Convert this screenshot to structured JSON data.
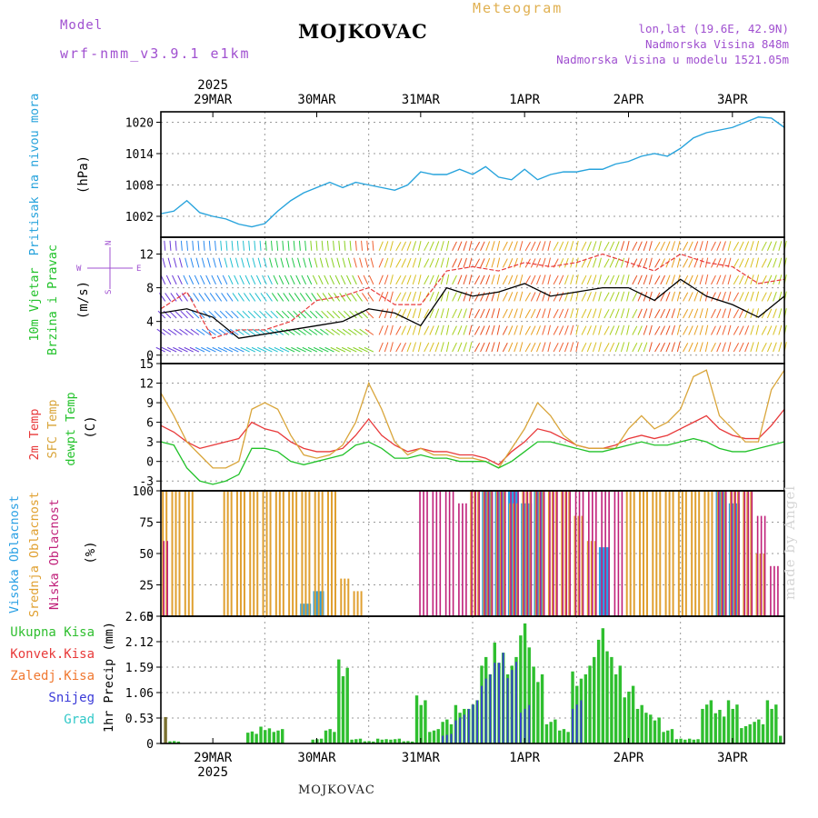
{
  "header": {
    "meteogram_label": "Meteogram",
    "model_label": "Model",
    "model_name": "wrf-nmm_v3.9.1 e1km",
    "station": "MOJKOVAC",
    "lonlat": "lon,lat (19.6E, 42.9N)",
    "elevation": "Nadmorska Visina 848m",
    "model_elevation": "Nadmorska Visina u modelu 1521.05m",
    "footer_station": "MOJKOVAC",
    "watermark": "made by Angel"
  },
  "colors": {
    "pressure": "#27a3dc",
    "temp2m": "#e8393a",
    "sfc_temp": "#d9a53a",
    "dewpoint": "#22c22a",
    "high_cloud": "#2aa0e4",
    "mid_cloud": "#e0a030",
    "low_cloud": "#c0207a",
    "total_precip": "#2fbf2f",
    "convective": "#e83a3a",
    "freezing": "#f07830",
    "snow": "#3a3ad8",
    "hail": "#30c8c8",
    "purple_header": "#a050d0",
    "meteogram_label": "#e0b050"
  },
  "axis": {
    "top_year": "2025",
    "bottom_year": "2025",
    "days_top": [
      "29MAR",
      "30MAR",
      "31MAR",
      "1APR",
      "2APR",
      "3APR"
    ],
    "days_bottom": [
      "29MAR",
      "30MAR",
      "31MAR",
      "1APR",
      "2APR",
      "3APR"
    ]
  },
  "chart_data": [
    {
      "type": "line",
      "title": "Pritisak na nivou mora",
      "ylabel": "(hPa)",
      "yticks": [
        "1002",
        "1008",
        "1014",
        "1020"
      ],
      "ylim": [
        998,
        1022
      ],
      "x_hours": [
        0,
        3,
        6,
        9,
        12,
        15,
        18,
        21,
        24,
        27,
        30,
        33,
        36,
        39,
        42,
        45,
        48,
        51,
        54,
        57,
        60,
        63,
        66,
        69,
        72,
        75,
        78,
        81,
        84,
        87,
        90,
        93,
        96,
        99,
        102,
        105,
        108,
        111,
        114,
        117,
        120,
        123,
        126,
        129,
        132,
        135,
        138,
        141,
        144
      ],
      "values": [
        1002.5,
        1003,
        1005,
        1002.7,
        1002,
        1001.5,
        1000.5,
        1000,
        1000.6,
        1003,
        1005,
        1006.5,
        1007.5,
        1008.5,
        1007.5,
        1008.5,
        1008,
        1007.5,
        1007,
        1008,
        1010.5,
        1010,
        1010,
        1011,
        1010,
        1011.5,
        1009.5,
        1009,
        1011,
        1009,
        1010,
        1010.5,
        1010.5,
        1011,
        1011,
        1012,
        1012.5,
        1013.5,
        1014,
        1013.5,
        1015,
        1017,
        1018,
        1018.5,
        1019,
        1020,
        1021,
        1020.8,
        1019
      ]
    },
    {
      "type": "line",
      "title": "10m Vjetar Brzina i Pravac",
      "ylabel": "(m/s)",
      "compass": {
        "n": "N",
        "e": "E",
        "s": "S",
        "w": "W"
      },
      "yticks": [
        "0",
        "4",
        "8",
        "12"
      ],
      "ylim": [
        -1,
        14
      ],
      "x_hours": [
        0,
        6,
        12,
        18,
        24,
        30,
        36,
        42,
        48,
        54,
        60,
        66,
        72,
        78,
        84,
        90,
        96,
        102,
        108,
        114,
        120,
        126,
        132,
        138,
        144
      ],
      "series": [
        {
          "values": [
            5,
            5.5,
            4.5,
            2,
            2.5,
            3,
            3.5,
            4,
            5.5,
            5,
            3.5,
            8,
            7,
            7.5,
            8.5,
            7,
            7.5,
            8,
            8,
            6.5,
            9,
            7,
            6,
            4.5,
            7
          ]
        },
        {
          "values": [
            5.5,
            7.5,
            2,
            3,
            3,
            4,
            6.5,
            7,
            8,
            6,
            6,
            10,
            10.5,
            10,
            11,
            10.5,
            11,
            12,
            11,
            10,
            12,
            11,
            10.5,
            8.5,
            9
          ]
        }
      ]
    },
    {
      "type": "line",
      "title": "2m Temp / SFC Temp / dewpt Temp",
      "ylabel": "(C)",
      "yticks": [
        "-3",
        "0",
        "3",
        "6",
        "9",
        "12",
        "15"
      ],
      "ylim": [
        -4.5,
        15
      ],
      "x_hours": [
        0,
        3,
        6,
        9,
        12,
        15,
        18,
        21,
        24,
        27,
        30,
        33,
        36,
        39,
        42,
        45,
        48,
        51,
        54,
        57,
        60,
        63,
        66,
        69,
        72,
        75,
        78,
        81,
        84,
        87,
        90,
        93,
        96,
        99,
        102,
        105,
        108,
        111,
        114,
        117,
        120,
        123,
        126,
        129,
        132,
        135,
        138,
        141,
        144
      ],
      "series": [
        {
          "name": "2m Temp",
          "values": [
            5.5,
            4.5,
            3,
            2,
            2.5,
            3,
            3.5,
            6,
            5,
            4.5,
            3,
            2,
            1.5,
            1.5,
            2,
            4,
            6.5,
            4,
            2.5,
            1.5,
            2,
            1.5,
            1.5,
            1,
            1,
            0.5,
            -0.5,
            1.5,
            3,
            5,
            4.5,
            3.5,
            2.5,
            2,
            2,
            2.5,
            3.5,
            4,
            3.5,
            4,
            5,
            6,
            7,
            5,
            4,
            3.5,
            3.5,
            5.5,
            8
          ]
        },
        {
          "name": "SFC Temp",
          "values": [
            10.5,
            7,
            3,
            1,
            -1,
            -1,
            0,
            8,
            9,
            8,
            4,
            1,
            0.5,
            1,
            2.5,
            6,
            12,
            8,
            3,
            1,
            2,
            1,
            1,
            0.5,
            0.5,
            0,
            -1,
            2,
            5,
            9,
            7,
            4,
            2.5,
            2,
            2,
            2,
            5,
            7,
            5,
            6,
            8,
            13,
            14,
            7,
            5,
            3,
            3,
            11,
            14
          ]
        },
        {
          "name": "dewpt Temp",
          "values": [
            3,
            2.5,
            -1,
            -3,
            -3.5,
            -3,
            -2,
            2,
            2,
            1.5,
            0,
            -0.5,
            0,
            0.5,
            1,
            2.5,
            3,
            2,
            0.5,
            0.5,
            1,
            0.5,
            0.5,
            0,
            0,
            0,
            -1,
            0,
            1.5,
            3,
            3,
            2.5,
            2,
            1.5,
            1.5,
            2,
            2.5,
            3,
            2.5,
            2.5,
            3,
            3.5,
            3,
            2,
            1.5,
            1.5,
            2,
            2.5,
            3
          ]
        }
      ]
    },
    {
      "type": "bar",
      "title": "Visoka Oblacnost / Srednja Oblacnost / Niska Oblacnost",
      "ylabel": "(%)",
      "yticks": [
        "0",
        "25",
        "50",
        "75",
        "100"
      ],
      "ylim": [
        0,
        100
      ],
      "x_hours": [
        0,
        3,
        6,
        9,
        12,
        15,
        18,
        21,
        24,
        27,
        30,
        33,
        36,
        39,
        42,
        45,
        48,
        51,
        54,
        57,
        60,
        63,
        66,
        69,
        72,
        75,
        78,
        81,
        84,
        87,
        90,
        93,
        96,
        99,
        102,
        105,
        108,
        111,
        114,
        117,
        120,
        123,
        126,
        129,
        132,
        135,
        138,
        141,
        144
      ],
      "series": [
        {
          "name": "Visoka Oblacnost",
          "values": [
            0,
            0,
            0,
            0,
            0,
            0,
            0,
            0,
            0,
            0,
            0,
            10,
            20,
            0,
            0,
            0,
            0,
            0,
            0,
            0,
            0,
            0,
            0,
            0,
            0,
            100,
            100,
            100,
            90,
            100,
            0,
            0,
            0,
            0,
            55,
            0,
            0,
            0,
            0,
            0,
            0,
            0,
            0,
            100,
            90,
            0,
            0,
            0,
            0
          ]
        },
        {
          "name": "Srednja Oblacnost",
          "values": [
            100,
            100,
            100,
            0,
            0,
            100,
            100,
            100,
            100,
            100,
            100,
            100,
            100,
            100,
            30,
            20,
            0,
            0,
            0,
            0,
            0,
            0,
            0,
            0,
            100,
            100,
            100,
            90,
            100,
            100,
            100,
            100,
            80,
            60,
            0,
            0,
            100,
            100,
            100,
            100,
            100,
            100,
            100,
            100,
            100,
            100,
            50,
            0,
            0
          ]
        },
        {
          "name": "Niska Oblacnost",
          "values": [
            60,
            0,
            0,
            0,
            0,
            0,
            0,
            0,
            0,
            0,
            0,
            0,
            0,
            0,
            0,
            0,
            0,
            0,
            0,
            0,
            100,
            100,
            100,
            90,
            100,
            100,
            100,
            100,
            100,
            100,
            100,
            100,
            100,
            100,
            100,
            100,
            0,
            0,
            0,
            0,
            0,
            0,
            0,
            100,
            100,
            100,
            80,
            40,
            0
          ]
        }
      ]
    },
    {
      "type": "bar",
      "ylabel": "1hr Precip (mm)",
      "yticks": [
        "0",
        "0.53",
        "1.06",
        "1.59",
        "2.12",
        "2.65"
      ],
      "ylim": [
        0,
        2.65
      ],
      "x_hours": [
        0,
        3,
        6,
        9,
        12,
        15,
        18,
        21,
        24,
        27,
        30,
        33,
        36,
        39,
        42,
        45,
        48,
        51,
        54,
        57,
        60,
        63,
        66,
        69,
        72,
        75,
        78,
        81,
        84,
        87,
        90,
        93,
        96,
        99,
        102,
        105,
        108,
        111,
        114,
        117,
        120,
        123,
        126,
        129,
        132,
        135,
        138,
        141,
        144
      ],
      "legend": [
        "Ukupna Kisa",
        "Konvek.Kisa",
        "Zaledj.Kisa",
        "Snijeg",
        "Grad"
      ],
      "series": [
        {
          "name": "Ukupna Kisa",
          "values": [
            0.55,
            0.05,
            0,
            0,
            0,
            0,
            0,
            0.25,
            0.35,
            0.3,
            0,
            0,
            0.1,
            0.3,
            1.75,
            0.1,
            0.05,
            0.1,
            0.1,
            0.05,
            1,
            0.3,
            0.5,
            0.8,
            0.9,
            1.8,
            2.1,
            1.8,
            2.5,
            1.6,
            0.5,
            0.3,
            1.5,
            1.8,
            2.4,
            1.8,
            1.2,
            0.8,
            0.6,
            0.3,
            0.1,
            0.1,
            0.9,
            0.7,
            0.9,
            0.4,
            0.5,
            0.9,
            0.2
          ]
        },
        {
          "name": "Snijeg",
          "values": [
            0,
            0,
            0,
            0,
            0,
            0,
            0,
            0,
            0,
            0,
            0,
            0,
            0,
            0,
            0,
            0,
            0,
            0,
            0,
            0,
            0,
            0,
            0.2,
            0.6,
            0.9,
            1.5,
            2.1,
            1.7,
            0.8,
            0,
            0,
            0,
            0.9,
            0,
            0,
            0,
            0,
            0,
            0,
            0,
            0,
            0,
            0,
            0,
            0,
            0,
            0,
            0,
            0
          ]
        }
      ]
    }
  ]
}
